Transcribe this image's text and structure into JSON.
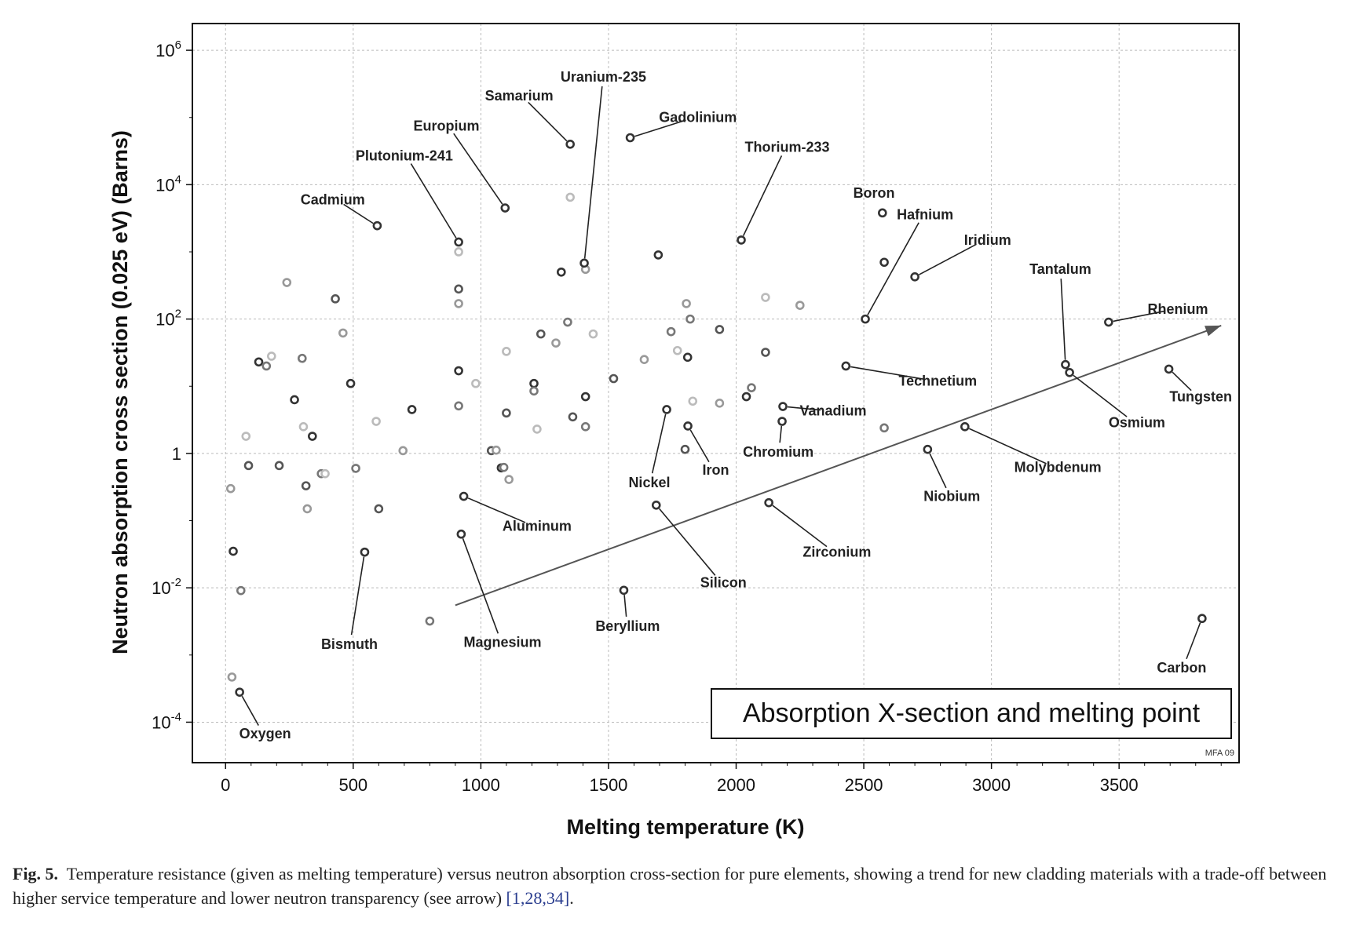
{
  "chart_data": {
    "type": "scatter",
    "xlabel": "Melting temperature (K)",
    "ylabel": "Neutron absorption cross section (0.025 eV) (Barns)",
    "x_ticks": [
      0,
      500,
      1000,
      1500,
      2000,
      2500,
      3000,
      3500
    ],
    "y_ticks": [
      {
        "value": 0.0001,
        "base": "10",
        "exp": "-4"
      },
      {
        "value": 0.01,
        "base": "10",
        "exp": "-2"
      },
      {
        "value": 1,
        "base": "1",
        "exp": ""
      },
      {
        "value": 100,
        "base": "10",
        "exp": "2"
      },
      {
        "value": 10000,
        "base": "10",
        "exp": "4"
      },
      {
        "value": 1000000,
        "base": "10",
        "exp": "6"
      }
    ],
    "xlim": [
      -130,
      3970
    ],
    "ylim": [
      2.5e-05,
      2500000
    ],
    "y_scale": "log",
    "grid": true,
    "annotation_box": "Absorption X-section and melting point",
    "credit": "MFA 09",
    "trend_arrow": {
      "from": [
        900,
        0.0055
      ],
      "to": [
        3900,
        80
      ]
    },
    "labeled_points": [
      {
        "name": "Uranium-235",
        "x": 1405,
        "y": 680,
        "label_x": 1480,
        "label_y": 400000
      },
      {
        "name": "Samarium",
        "x": 1350,
        "y": 40000,
        "label_x": 1150,
        "label_y": 210000
      },
      {
        "name": "Gadolinium",
        "x": 1585,
        "y": 50000,
        "label_x": 1850,
        "label_y": 100000
      },
      {
        "name": "Europium",
        "x": 1095,
        "y": 4500,
        "label_x": 865,
        "label_y": 75000
      },
      {
        "name": "Thorium-233",
        "x": 2020,
        "y": 1500,
        "label_x": 2200,
        "label_y": 36000
      },
      {
        "name": "Plutonium-241",
        "x": 913,
        "y": 1400,
        "label_x": 700,
        "label_y": 27000
      },
      {
        "name": "Boron",
        "x": 2573,
        "y": 3800,
        "label_x": 2540,
        "label_y": 7500
      },
      {
        "name": "Cadmium",
        "x": 594,
        "y": 2450,
        "label_x": 420,
        "label_y": 6000
      },
      {
        "name": "Hafnium",
        "x": 2506,
        "y": 100,
        "label_x": 2740,
        "label_y": 3600
      },
      {
        "name": "Iridium",
        "x": 2700,
        "y": 425,
        "label_x": 2985,
        "label_y": 1500
      },
      {
        "name": "Tantalum",
        "x": 3290,
        "y": 21,
        "label_x": 3270,
        "label_y": 550
      },
      {
        "name": "Rhenium",
        "x": 3459,
        "y": 90,
        "label_x": 3730,
        "label_y": 140
      },
      {
        "name": "Technetium",
        "x": 2430,
        "y": 20,
        "label_x": 2790,
        "label_y": 12
      },
      {
        "name": "Tungsten",
        "x": 3695,
        "y": 18,
        "label_x": 3820,
        "label_y": 7
      },
      {
        "name": "Vanadium",
        "x": 2183,
        "y": 5,
        "label_x": 2380,
        "label_y": 4.3
      },
      {
        "name": "Osmium",
        "x": 3306,
        "y": 16,
        "label_x": 3570,
        "label_y": 2.9
      },
      {
        "name": "Chromium",
        "x": 2180,
        "y": 3,
        "label_x": 2165,
        "label_y": 1.05
      },
      {
        "name": "Iron",
        "x": 1811,
        "y": 2.56,
        "label_x": 1920,
        "label_y": 0.57
      },
      {
        "name": "Nickel",
        "x": 1728,
        "y": 4.5,
        "label_x": 1660,
        "label_y": 0.37
      },
      {
        "name": "Molybdenum",
        "x": 2896,
        "y": 2.5,
        "label_x": 3260,
        "label_y": 0.62
      },
      {
        "name": "Niobium",
        "x": 2750,
        "y": 1.15,
        "label_x": 2845,
        "label_y": 0.23
      },
      {
        "name": "Aluminum",
        "x": 933,
        "y": 0.23,
        "label_x": 1220,
        "label_y": 0.083
      },
      {
        "name": "Zirconium",
        "x": 2128,
        "y": 0.185,
        "label_x": 2395,
        "label_y": 0.034
      },
      {
        "name": "Silicon",
        "x": 1687,
        "y": 0.17,
        "label_x": 1950,
        "label_y": 0.012
      },
      {
        "name": "Beryllium",
        "x": 1560,
        "y": 0.0092,
        "label_x": 1575,
        "label_y": 0.0027
      },
      {
        "name": "Bismuth",
        "x": 545,
        "y": 0.034,
        "label_x": 485,
        "label_y": 0.00145
      },
      {
        "name": "Magnesium",
        "x": 923,
        "y": 0.063,
        "label_x": 1085,
        "label_y": 0.00155
      },
      {
        "name": "Carbon",
        "x": 3825,
        "y": 0.0035,
        "label_x": 3745,
        "label_y": 0.00065
      },
      {
        "name": "Oxygen",
        "x": 55,
        "y": 0.00028,
        "label_x": 155,
        "label_y": 6.8e-05
      }
    ],
    "unlabeled_points": [
      [
        20,
        0.3
      ],
      [
        30,
        0.035
      ],
      [
        60,
        0.0091
      ],
      [
        80,
        1.8
      ],
      [
        90,
        0.66
      ],
      [
        25,
        0.00047
      ],
      [
        130,
        23
      ],
      [
        160,
        20
      ],
      [
        180,
        28
      ],
      [
        210,
        0.66
      ],
      [
        240,
        350
      ],
      [
        270,
        6.3
      ],
      [
        300,
        26
      ],
      [
        305,
        2.5
      ],
      [
        315,
        0.33
      ],
      [
        320,
        0.15
      ],
      [
        340,
        1.8
      ],
      [
        375,
        0.5
      ],
      [
        390,
        0.5
      ],
      [
        430,
        200
      ],
      [
        460,
        62
      ],
      [
        490,
        11
      ],
      [
        510,
        0.6
      ],
      [
        590,
        3
      ],
      [
        600,
        0.15
      ],
      [
        695,
        1.1
      ],
      [
        730,
        4.5
      ],
      [
        800,
        0.0032
      ],
      [
        913,
        1000
      ],
      [
        913,
        280
      ],
      [
        913,
        170
      ],
      [
        913,
        17
      ],
      [
        913,
        5.1
      ],
      [
        980,
        11
      ],
      [
        1041,
        1.1
      ],
      [
        1060,
        1.12
      ],
      [
        1080,
        0.61
      ],
      [
        1090,
        0.62
      ],
      [
        1100,
        33
      ],
      [
        1100,
        4
      ],
      [
        1110,
        0.41
      ],
      [
        1208,
        11
      ],
      [
        1208,
        8.5
      ],
      [
        1220,
        2.3
      ],
      [
        1235,
        60
      ],
      [
        1294,
        44
      ],
      [
        1315,
        500
      ],
      [
        1340,
        90
      ],
      [
        1350,
        6500
      ],
      [
        1360,
        3.5
      ],
      [
        1410,
        550
      ],
      [
        1410,
        7
      ],
      [
        1410,
        2.5
      ],
      [
        1440,
        60
      ],
      [
        1520,
        13
      ],
      [
        1640,
        25
      ],
      [
        1695,
        900
      ],
      [
        1745,
        65
      ],
      [
        1770,
        34
      ],
      [
        1800,
        1.15
      ],
      [
        1805,
        170
      ],
      [
        1810,
        27
      ],
      [
        1820,
        100
      ],
      [
        1830,
        6
      ],
      [
        1935,
        70
      ],
      [
        1935,
        5.6
      ],
      [
        2040,
        7
      ],
      [
        2060,
        9.5
      ],
      [
        2115,
        210
      ],
      [
        2115,
        32
      ],
      [
        2250,
        160
      ],
      [
        2580,
        700
      ],
      [
        2580,
        2.4
      ]
    ]
  }
}
